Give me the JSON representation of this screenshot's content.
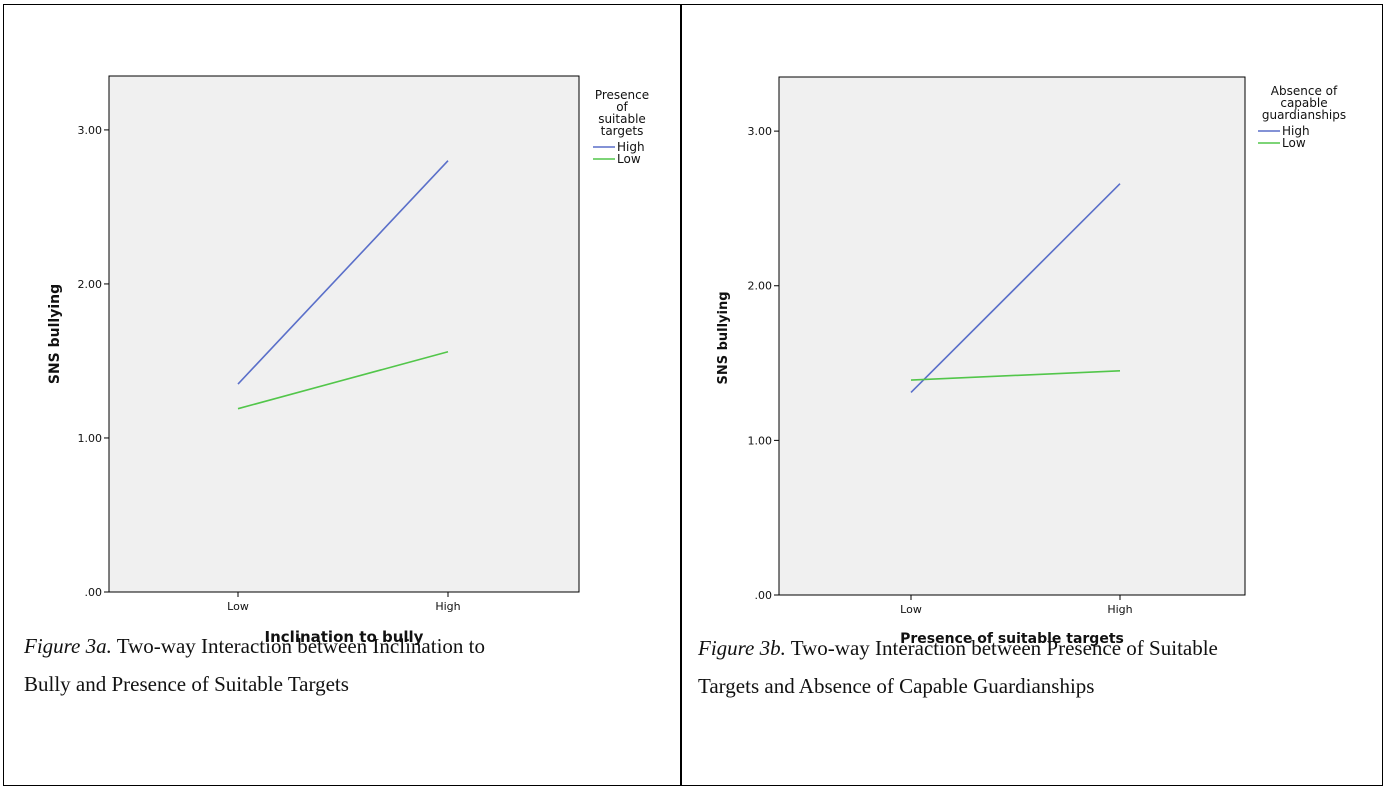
{
  "colors": {
    "high": "#5a6fc9",
    "low": "#52c64a",
    "plot_bg": "#f0f0f0"
  },
  "chart_data": [
    {
      "type": "line",
      "xlabel": "Inclination to bully",
      "ylabel": "SNS bullying",
      "categories": [
        "Low",
        "High"
      ],
      "ylim": [
        0,
        3.35
      ],
      "yticks": [
        ".00",
        "1.00",
        "2.00",
        "3.00"
      ],
      "ytick_values": [
        0,
        1,
        2,
        3
      ],
      "legend_title_lines": [
        "Presence",
        "of",
        "suitable",
        "targets"
      ],
      "series": [
        {
          "name": "High",
          "color_key": "high",
          "values": [
            1.35,
            2.8
          ]
        },
        {
          "name": "Low",
          "color_key": "low",
          "values": [
            1.19,
            1.56
          ]
        }
      ],
      "caption_label": "Figure 3a.",
      "caption_text_1": " Two-way Interaction between Inclination to",
      "caption_text_2": "Bully and Presence of Suitable Targets"
    },
    {
      "type": "line",
      "xlabel": "Presence of suitable targets",
      "ylabel": "SNS bullying",
      "categories": [
        "Low",
        "High"
      ],
      "ylim": [
        0,
        3.35
      ],
      "yticks": [
        ".00",
        "1.00",
        "2.00",
        "3.00"
      ],
      "ytick_values": [
        0,
        1,
        2,
        3
      ],
      "legend_title_lines": [
        "Absence of",
        "capable",
        "guardianships"
      ],
      "series": [
        {
          "name": "High",
          "color_key": "high",
          "values": [
            1.31,
            2.66
          ]
        },
        {
          "name": "Low",
          "color_key": "low",
          "values": [
            1.39,
            1.45
          ]
        }
      ],
      "caption_label": "Figure 3b.",
      "caption_text_1": " Two-way Interaction between Presence of Suitable",
      "caption_text_2": "Targets and Absence of Capable Guardianships"
    }
  ]
}
